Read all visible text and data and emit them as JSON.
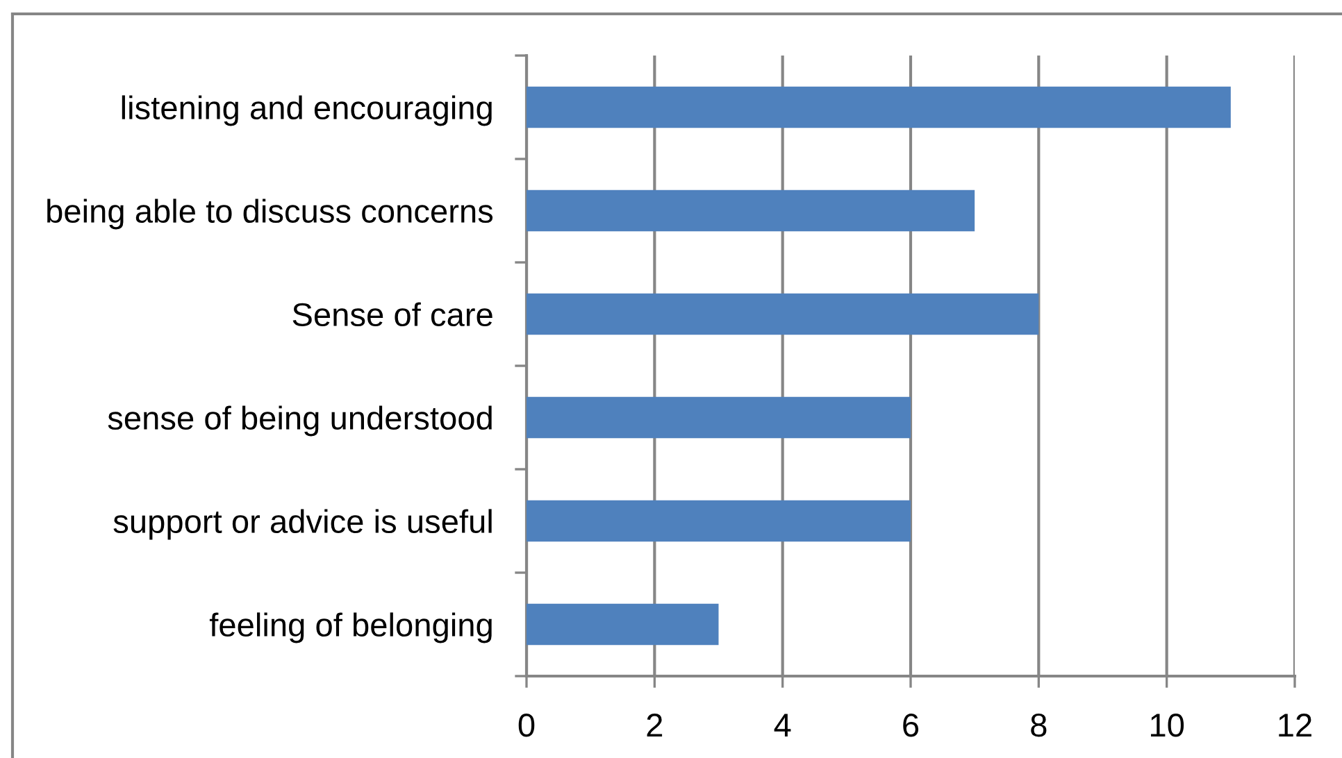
{
  "chart_data": {
    "type": "bar",
    "orientation": "horizontal",
    "categories": [
      "listening and encouraging",
      "being able to discuss concerns",
      "Sense of care",
      "sense of being understood",
      "support or advice is useful",
      "feeling of belonging"
    ],
    "values": [
      11,
      7,
      8,
      6,
      6,
      3
    ],
    "color": "#4f81bd",
    "xlim": [
      0,
      12
    ],
    "xticks": [
      0,
      2,
      4,
      6,
      8,
      10,
      12
    ],
    "grid": "x",
    "legend": false
  }
}
